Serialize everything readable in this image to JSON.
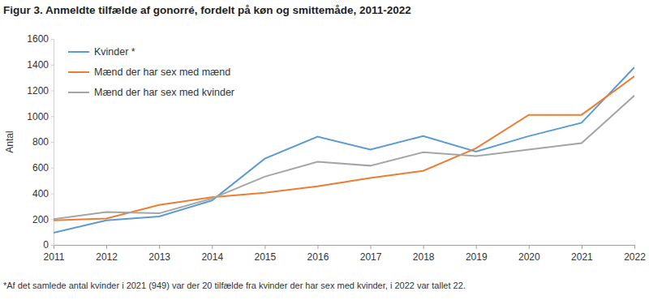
{
  "chart_data": {
    "type": "line",
    "title": "Figur 3. Anmeldte tilfælde af gonorré, fordelt på køn og smittemåde, 2011-2022",
    "y_label": "Antal",
    "annotations": [
      "*Af det samlede antal kvinder i 2021 (949) var der 20 tilfælde fra kvinder der har sex med kvinder, i 2022 var tallet 22."
    ],
    "x": [
      2011,
      2012,
      2013,
      2014,
      2015,
      2016,
      2017,
      2018,
      2019,
      2020,
      2021,
      2022
    ],
    "xlim": [
      2011,
      2022
    ],
    "xticks": [
      2011,
      2012,
      2013,
      2014,
      2015,
      2016,
      2017,
      2018,
      2019,
      2020,
      2021,
      2022
    ],
    "ylim": [
      0,
      1600
    ],
    "yticks": [
      0,
      200,
      400,
      600,
      800,
      1000,
      1200,
      1400,
      1600
    ],
    "grid": false,
    "legend": "upper left",
    "series": [
      {
        "name": "Kvinder *",
        "color": "#5b9bd5",
        "values": [
          95,
          190,
          220,
          345,
          670,
          840,
          740,
          845,
          725,
          845,
          949,
          1380
        ]
      },
      {
        "name": "Mænd der har sex med mænd",
        "color": "#ed7d31",
        "values": [
          190,
          205,
          310,
          370,
          405,
          455,
          520,
          575,
          750,
          1010,
          1010,
          1310
        ]
      },
      {
        "name": "Mænd der har sex med kvinder",
        "color": "#a5a5a5",
        "values": [
          200,
          255,
          245,
          360,
          530,
          645,
          615,
          720,
          690,
          740,
          790,
          1160
        ]
      }
    ]
  }
}
